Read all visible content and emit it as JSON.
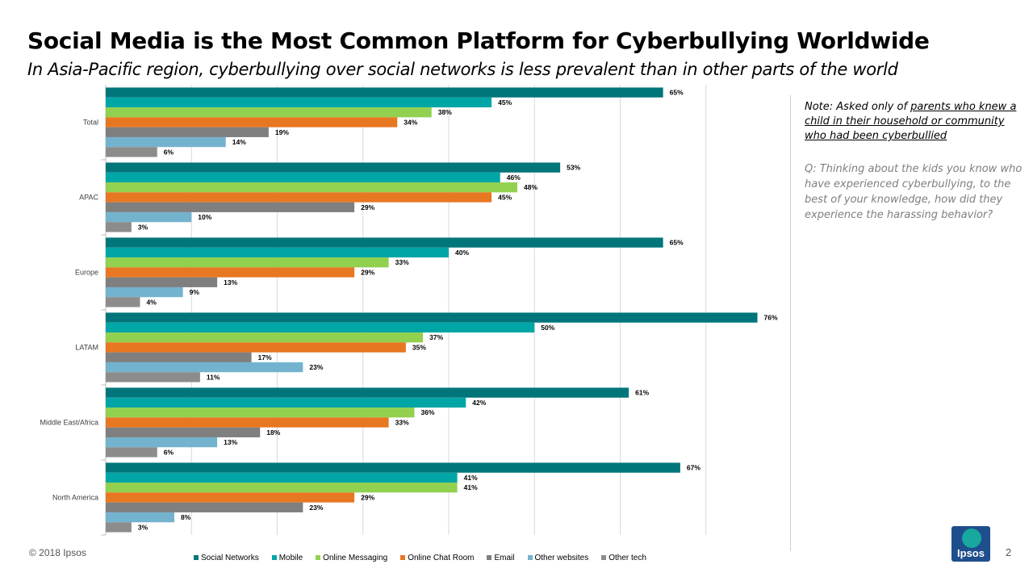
{
  "header": {
    "title": "Social Media is the Most Common Platform for Cyberbullying Worldwide",
    "subtitle": "In Asia-Pacific region, cyberbullying over social networks is less prevalent than in other parts of the world"
  },
  "note": {
    "prefix": "Note: Asked only of ",
    "underlined": "parents who knew  a child in their household or community who had been cyberbullied"
  },
  "question": "Q: Thinking about the kids you know who have experienced cyberbullying, to the best of your knowledge, how did they experience the harassing behavior?",
  "footer": {
    "copyright": "© 2018 Ipsos",
    "page_number": "2",
    "logo_text": "Ipsos"
  },
  "chart_data": {
    "type": "bar",
    "orientation": "horizontal",
    "grid": true,
    "xlim": [
      0,
      80
    ],
    "value_suffix": "%",
    "legend_position": "bottom",
    "categories": [
      "Total",
      "APAC",
      "Europe",
      "LATAM",
      "Middle East/Africa",
      "North America"
    ],
    "series": [
      {
        "name": "Social Networks",
        "color": "#00757a",
        "values": [
          65,
          53,
          65,
          76,
          61,
          67
        ]
      },
      {
        "name": "Mobile",
        "color": "#00a6a6",
        "values": [
          45,
          46,
          40,
          50,
          42,
          41
        ]
      },
      {
        "name": "Online Messaging",
        "color": "#92d050",
        "values": [
          38,
          48,
          33,
          37,
          36,
          41
        ]
      },
      {
        "name": "Online Chat Room",
        "color": "#e87722",
        "values": [
          34,
          45,
          29,
          35,
          33,
          29
        ]
      },
      {
        "name": "Email",
        "color": "#7f7f7f",
        "values": [
          19,
          29,
          13,
          17,
          18,
          23
        ]
      },
      {
        "name": "Other websites",
        "color": "#74b3ce",
        "values": [
          14,
          10,
          9,
          23,
          13,
          8
        ]
      },
      {
        "name": "Other tech",
        "color": "#8c8c8c",
        "values": [
          6,
          3,
          4,
          11,
          6,
          3
        ]
      }
    ]
  }
}
